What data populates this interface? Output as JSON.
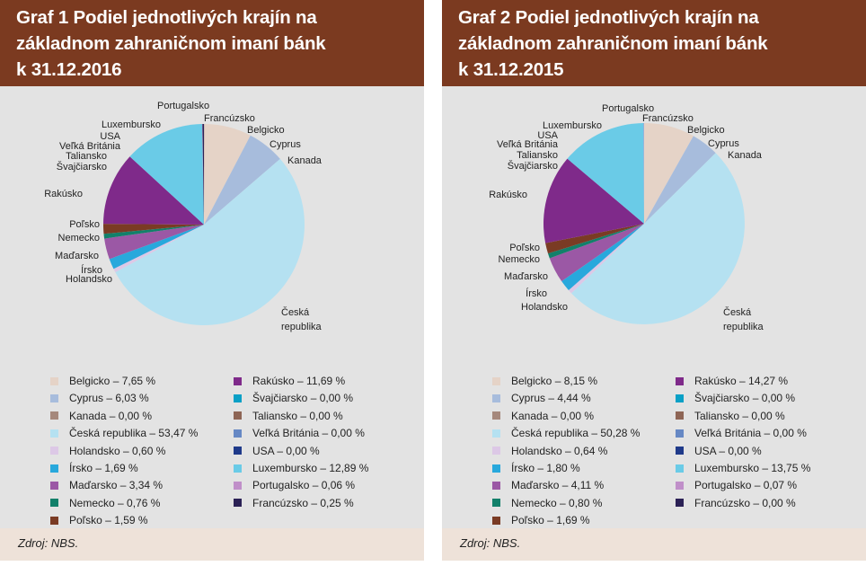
{
  "colors": {
    "Belgicko": "#e5d3c7",
    "Cyprus": "#a7bcdc",
    "Kanada": "#a5887c",
    "Česká republika": "#b5e1f1",
    "Holandsko": "#dcc8e6",
    "Írsko": "#28a8dc",
    "Maďarsko": "#9b58a5",
    "Nemecko": "#12806a",
    "Poľsko": "#7a3b24",
    "Rakúsko": "#7f2a8a",
    "Švajčiarsko": "#0aa0c6",
    "Taliansko": "#8e6555",
    "Veľká Británia": "#6688c4",
    "USA": "#1f3a8a",
    "Luxembursko": "#6acbe7",
    "Portugalsko": "#c08fc9",
    "Francúzsko": "#2b2155"
  },
  "chart_data": [
    {
      "type": "pie",
      "title": "Graf 1 Podiel jednotlivých krajín na základnom zahraničnom imaní bánk k 31.12.2016",
      "title_lines": [
        "Graf 1 Podiel jednotlivých krajín na",
        "základnom zahraničnom imaní bánk",
        "k 31.12.2016"
      ],
      "source": "Zdroj: NBS.",
      "slice_order": [
        "Belgicko",
        "Cyprus",
        "Kanada",
        "Česká republika",
        "Holandsko",
        "Írsko",
        "Maďarsko",
        "Nemecko",
        "Poľsko",
        "Rakúsko",
        "Švajčiarsko",
        "Taliansko",
        "Veľká Británia",
        "USA",
        "Luxembursko",
        "Portugalsko",
        "Francúzsko"
      ],
      "slices": {
        "Belgicko": 7.65,
        "Cyprus": 6.03,
        "Kanada": 0.0,
        "Česká republika": 53.47,
        "Holandsko": 0.6,
        "Írsko": 1.69,
        "Maďarsko": 3.34,
        "Nemecko": 0.76,
        "Poľsko": 1.59,
        "Rakúsko": 11.69,
        "Švajčiarsko": 0.0,
        "Taliansko": 0.0,
        "Veľká Británia": 0.0,
        "USA": 0.0,
        "Luxembursko": 12.89,
        "Portugalsko": 0.06,
        "Francúzsko": 0.25
      },
      "pie_labels": [
        "Portugalsko",
        "Francúzsko",
        "Luxembursko",
        "Belgicko",
        "USA",
        "Cyprus",
        "Veľká Británia",
        "Taliansko",
        "Švajčiarsko",
        "Kanada",
        "Rakúsko",
        "Poľsko",
        "Nemecko",
        "Maďarsko",
        "Írsko",
        "Holandsko",
        "Česká",
        "republika"
      ],
      "legend_col1": [
        {
          "key": "Belgicko",
          "text": "Belgicko – 7,65 %"
        },
        {
          "key": "Cyprus",
          "text": "Cyprus – 6,03 %"
        },
        {
          "key": "Kanada",
          "text": "Kanada – 0,00 %"
        },
        {
          "key": "Česká republika",
          "text": "Česká republika – 53,47 %"
        },
        {
          "key": "Holandsko",
          "text": "Holandsko – 0,60 %"
        },
        {
          "key": "Írsko",
          "text": "Írsko – 1,69 %"
        },
        {
          "key": "Maďarsko",
          "text": "Maďarsko – 3,34 %"
        },
        {
          "key": "Nemecko",
          "text": "Nemecko – 0,76 %"
        },
        {
          "key": "Poľsko",
          "text": "Poľsko – 1,59 %"
        }
      ],
      "legend_col2": [
        {
          "key": "Rakúsko",
          "text": "Rakúsko – 11,69 %"
        },
        {
          "key": "Švajčiarsko",
          "text": "Švajčiarsko – 0,00 %"
        },
        {
          "key": "Taliansko",
          "text": "Taliansko – 0,00 %"
        },
        {
          "key": "Veľká Británia",
          "text": "Veľká Británia – 0,00 %"
        },
        {
          "key": "USA",
          "text": "USA – 0,00 %"
        },
        {
          "key": "Luxembursko",
          "text": "Luxembursko – 12,89 %"
        },
        {
          "key": "Portugalsko",
          "text": "Portugalsko – 0,06 %"
        },
        {
          "key": "Francúzsko",
          "text": "Francúzsko – 0,25 %"
        }
      ]
    },
    {
      "type": "pie",
      "title": "Graf 2 Podiel jednotlivých krajín na základnom zahraničnom imaní bánk k 31.12.2015",
      "title_lines": [
        "Graf 2 Podiel jednotlivých krajín na",
        "základnom zahraničnom imaní bánk",
        "k 31.12.2015"
      ],
      "source": "Zdroj: NBS.",
      "slice_order": [
        "Belgicko",
        "Cyprus",
        "Kanada",
        "Česká republika",
        "Holandsko",
        "Írsko",
        "Maďarsko",
        "Nemecko",
        "Poľsko",
        "Rakúsko",
        "Švajčiarsko",
        "Taliansko",
        "Veľká Británia",
        "USA",
        "Luxembursko",
        "Portugalsko",
        "Francúzsko"
      ],
      "slices": {
        "Belgicko": 8.15,
        "Cyprus": 4.44,
        "Kanada": 0.0,
        "Česká republika": 50.28,
        "Holandsko": 0.64,
        "Írsko": 1.8,
        "Maďarsko": 4.11,
        "Nemecko": 0.8,
        "Poľsko": 1.69,
        "Rakúsko": 14.27,
        "Švajčiarsko": 0.0,
        "Taliansko": 0.0,
        "Veľká Británia": 0.0,
        "USA": 0.0,
        "Luxembursko": 13.75,
        "Portugalsko": 0.07,
        "Francúzsko": 0.0
      },
      "pie_labels": [
        "Portugalsko",
        "Francúzsko",
        "Luxembursko",
        "Belgicko",
        "USA",
        "Cyprus",
        "Veľká Británia",
        "Kanada",
        "Taliansko",
        "Švajčiarsko",
        "Rakúsko",
        "Poľsko",
        "Nemecko",
        "Maďarsko",
        "Írsko",
        "Holandsko",
        "Česká",
        "republika"
      ],
      "legend_col1": [
        {
          "key": "Belgicko",
          "text": "Belgicko – 8,15 %"
        },
        {
          "key": "Cyprus",
          "text": "Cyprus – 4,44 %"
        },
        {
          "key": "Kanada",
          "text": "Kanada – 0,00 %"
        },
        {
          "key": "Česká republika",
          "text": "Česká republika – 50,28 %"
        },
        {
          "key": "Holandsko",
          "text": "Holandsko – 0,64 %"
        },
        {
          "key": "Írsko",
          "text": "Írsko – 1,80 %"
        },
        {
          "key": "Maďarsko",
          "text": "Maďarsko – 4,11 %"
        },
        {
          "key": "Nemecko",
          "text": "Nemecko – 0,80 %"
        },
        {
          "key": "Poľsko",
          "text": "Poľsko – 1,69 %"
        }
      ],
      "legend_col2": [
        {
          "key": "Rakúsko",
          "text": "Rakúsko – 14,27 %"
        },
        {
          "key": "Švajčiarsko",
          "text": "Švajčiarsko – 0,00 %"
        },
        {
          "key": "Taliansko",
          "text": "Taliansko – 0,00 %"
        },
        {
          "key": "Veľká Británia",
          "text": "Veľká Británia – 0,00 %"
        },
        {
          "key": "USA",
          "text": "USA – 0,00 %"
        },
        {
          "key": "Luxembursko",
          "text": "Luxembursko – 13,75 %"
        },
        {
          "key": "Portugalsko",
          "text": "Portugalsko – 0,07 %"
        },
        {
          "key": "Francúzsko",
          "text": "Francúzsko – 0,00 %"
        }
      ]
    }
  ]
}
